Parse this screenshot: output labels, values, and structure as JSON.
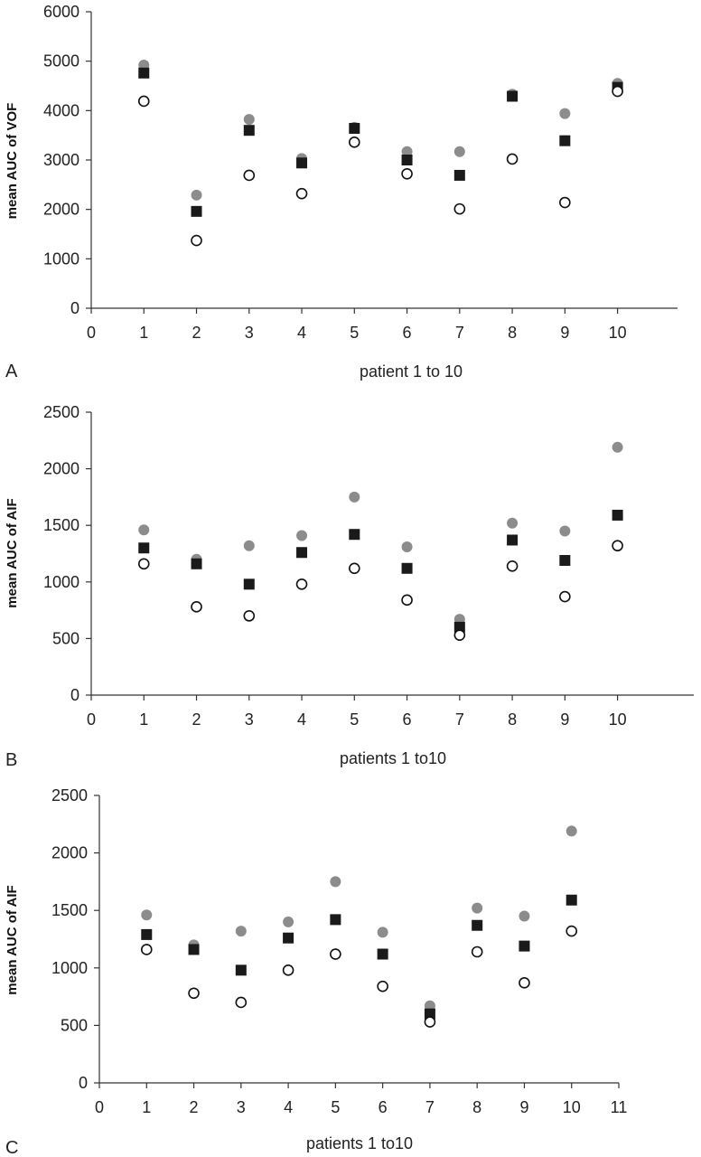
{
  "chart_data": [
    {
      "type": "scatter",
      "panel_label": "A",
      "xlabel": "patient 1 to 10",
      "ylabel": "mean AUC of VOF",
      "xlim": [
        0,
        11
      ],
      "ylim": [
        0,
        6000
      ],
      "xticks": [
        0,
        1,
        2,
        3,
        4,
        5,
        6,
        7,
        8,
        9,
        10
      ],
      "yticks": [
        0,
        1000,
        2000,
        3000,
        4000,
        5000,
        6000
      ],
      "x": [
        1,
        2,
        3,
        4,
        5,
        6,
        7,
        8,
        9,
        10
      ],
      "series": [
        {
          "marker": "gray-filled-circle",
          "color": "#8c8c8c",
          "values": [
            4920,
            2290,
            3820,
            3030,
            3660,
            3170,
            3170,
            4330,
            3940,
            4550
          ]
        },
        {
          "marker": "black-filled-square",
          "color": "#1a1a1a",
          "values": [
            4760,
            1960,
            3600,
            2940,
            3640,
            3000,
            2690,
            4290,
            3390,
            4470
          ]
        },
        {
          "marker": "open-circle",
          "color": "#111111",
          "values": [
            4190,
            1370,
            2690,
            2320,
            3360,
            2720,
            2010,
            3020,
            2140,
            4390
          ]
        }
      ]
    },
    {
      "type": "scatter",
      "panel_label": "B",
      "xlabel": "patients 1 to10",
      "ylabel": "mean AUC of AIF",
      "xlim": [
        0,
        11
      ],
      "ylim": [
        0,
        2500
      ],
      "xticks": [
        0,
        1,
        2,
        3,
        4,
        5,
        6,
        7,
        8,
        9,
        10
      ],
      "yticks": [
        0,
        500,
        1000,
        1500,
        2000,
        2500
      ],
      "x": [
        1,
        2,
        3,
        4,
        5,
        6,
        7,
        8,
        9,
        10
      ],
      "series": [
        {
          "marker": "gray-filled-circle",
          "color": "#8c8c8c",
          "values": [
            1460,
            1200,
            1320,
            1410,
            1750,
            1310,
            670,
            1520,
            1450,
            2190
          ]
        },
        {
          "marker": "black-filled-square",
          "color": "#1a1a1a",
          "values": [
            1300,
            1160,
            980,
            1260,
            1420,
            1120,
            600,
            1370,
            1190,
            1590
          ]
        },
        {
          "marker": "open-circle",
          "color": "#111111",
          "values": [
            1160,
            780,
            700,
            980,
            1120,
            840,
            530,
            1140,
            870,
            1320
          ]
        }
      ]
    },
    {
      "type": "scatter",
      "panel_label": "C",
      "xlabel": "patients 1 to10",
      "ylabel": "mean AUC of AIF",
      "xlim": [
        0,
        11
      ],
      "ylim": [
        0,
        2500
      ],
      "xticks": [
        0,
        1,
        2,
        3,
        4,
        5,
        6,
        7,
        8,
        9,
        10,
        11
      ],
      "yticks": [
        0,
        500,
        1000,
        1500,
        2000,
        2500
      ],
      "x": [
        1,
        2,
        3,
        4,
        5,
        6,
        7,
        8,
        9,
        10
      ],
      "series": [
        {
          "marker": "gray-filled-circle",
          "color": "#8c8c8c",
          "values": [
            1460,
            1200,
            1320,
            1400,
            1750,
            1310,
            670,
            1520,
            1450,
            2190
          ]
        },
        {
          "marker": "black-filled-square",
          "color": "#1a1a1a",
          "values": [
            1290,
            1160,
            980,
            1260,
            1420,
            1120,
            600,
            1370,
            1190,
            1590
          ]
        },
        {
          "marker": "open-circle",
          "color": "#111111",
          "values": [
            1160,
            780,
            700,
            980,
            1120,
            840,
            530,
            1140,
            870,
            1320
          ]
        }
      ]
    }
  ]
}
